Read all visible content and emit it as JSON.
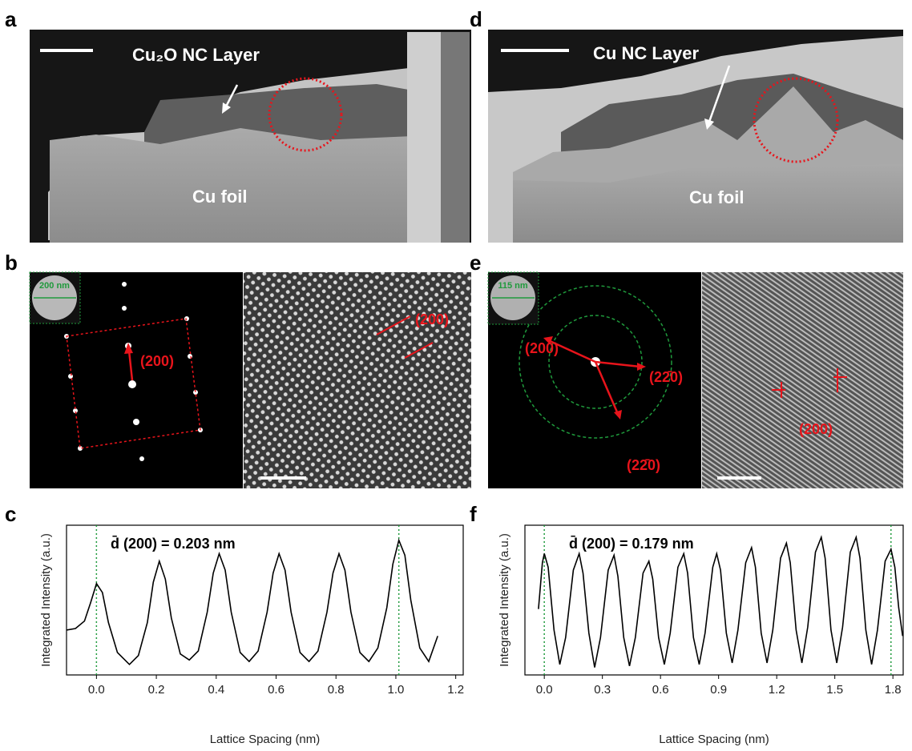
{
  "panels": {
    "a": {
      "label": "a",
      "layer": "Cu₂O NC Layer",
      "foil": "Cu foil"
    },
    "d": {
      "label": "d",
      "layer": "Cu NC Layer",
      "foil": "Cu foil"
    },
    "b": {
      "label": "b",
      "inset": "200 nm",
      "spot": "(200)",
      "fringe": "(200)"
    },
    "e": {
      "label": "e",
      "inset": "115 nm",
      "ring1": "(200)",
      "ring2": "(22̄0)",
      "ring3": "(22̄0)",
      "fringe": "(200)"
    }
  },
  "chart_data": [
    {
      "type": "line",
      "label": "c",
      "annotation": "d̄ (200) = 0.203 nm",
      "x_label": "Lattice Spacing (nm)",
      "y_label": "Integrated Intensity (a.u.)",
      "xlim": [
        -0.1,
        1.225
      ],
      "ylim": [
        0,
        1
      ],
      "xticks": [
        {
          "value": 0,
          "label": "0.0"
        },
        {
          "value": 0.2,
          "label": "0.2"
        },
        {
          "value": 0.4,
          "label": "0.4"
        },
        {
          "value": 0.6,
          "label": "0.6"
        },
        {
          "value": 0.8,
          "label": "0.8"
        },
        {
          "value": 1,
          "label": "1.0"
        },
        {
          "value": 1.2,
          "label": "1.2"
        }
      ],
      "vlines": [
        0,
        1.01
      ],
      "vline_color": "#1f9a3c",
      "color": "#000000",
      "x": [
        -0.1,
        -0.07,
        -0.04,
        -0.02,
        0,
        0.02,
        0.04,
        0.07,
        0.11,
        0.14,
        0.17,
        0.19,
        0.21,
        0.23,
        0.25,
        0.28,
        0.31,
        0.34,
        0.37,
        0.39,
        0.41,
        0.43,
        0.45,
        0.48,
        0.51,
        0.54,
        0.57,
        0.59,
        0.61,
        0.63,
        0.65,
        0.68,
        0.71,
        0.74,
        0.77,
        0.79,
        0.81,
        0.83,
        0.85,
        0.88,
        0.91,
        0.94,
        0.97,
        0.99,
        1.01,
        1.03,
        1.05,
        1.08,
        1.11,
        1.14
      ],
      "values": [
        0.3,
        0.31,
        0.36,
        0.48,
        0.61,
        0.55,
        0.35,
        0.15,
        0.07,
        0.13,
        0.35,
        0.62,
        0.76,
        0.64,
        0.38,
        0.14,
        0.1,
        0.16,
        0.42,
        0.68,
        0.81,
        0.7,
        0.42,
        0.15,
        0.09,
        0.16,
        0.42,
        0.68,
        0.81,
        0.7,
        0.42,
        0.15,
        0.09,
        0.16,
        0.42,
        0.68,
        0.81,
        0.7,
        0.42,
        0.15,
        0.09,
        0.18,
        0.45,
        0.74,
        0.9,
        0.8,
        0.5,
        0.18,
        0.09,
        0.26
      ]
    },
    {
      "type": "line",
      "label": "f",
      "annotation": "d̄ (200) = 0.179 nm",
      "x_label": "Lattice Spacing (nm)",
      "y_label": "Integrated Intensity (a.u.)",
      "xlim": [
        -0.1,
        1.853
      ],
      "ylim": [
        0,
        1
      ],
      "xticks": [
        {
          "value": 0,
          "label": "0.0"
        },
        {
          "value": 0.3,
          "label": "0.3"
        },
        {
          "value": 0.6,
          "label": "0.6"
        },
        {
          "value": 0.9,
          "label": "0.9"
        },
        {
          "value": 1.2,
          "label": "1.2"
        },
        {
          "value": 1.5,
          "label": "1.5"
        },
        {
          "value": 1.8,
          "label": "1.8"
        }
      ],
      "vlines": [
        0,
        1.79
      ],
      "vline_color": "#1f9a3c",
      "color": "#000000",
      "x": [
        -0.03,
        -0.01,
        0,
        0.02,
        0.05,
        0.08,
        0.11,
        0.15,
        0.18,
        0.2,
        0.23,
        0.26,
        0.29,
        0.33,
        0.36,
        0.38,
        0.41,
        0.44,
        0.47,
        0.51,
        0.54,
        0.56,
        0.59,
        0.62,
        0.65,
        0.69,
        0.72,
        0.74,
        0.77,
        0.8,
        0.83,
        0.87,
        0.89,
        0.91,
        0.94,
        0.97,
        1.0,
        1.04,
        1.07,
        1.09,
        1.12,
        1.15,
        1.18,
        1.22,
        1.25,
        1.27,
        1.3,
        1.33,
        1.36,
        1.4,
        1.43,
        1.45,
        1.48,
        1.51,
        1.54,
        1.58,
        1.61,
        1.63,
        1.66,
        1.69,
        1.72,
        1.76,
        1.79,
        1.81,
        1.83,
        1.85
      ],
      "values": [
        0.44,
        0.75,
        0.81,
        0.72,
        0.3,
        0.07,
        0.25,
        0.7,
        0.81,
        0.68,
        0.28,
        0.05,
        0.25,
        0.7,
        0.8,
        0.66,
        0.25,
        0.06,
        0.25,
        0.68,
        0.76,
        0.64,
        0.25,
        0.07,
        0.28,
        0.72,
        0.81,
        0.68,
        0.25,
        0.07,
        0.28,
        0.72,
        0.81,
        0.7,
        0.28,
        0.08,
        0.3,
        0.75,
        0.85,
        0.72,
        0.28,
        0.08,
        0.3,
        0.78,
        0.88,
        0.75,
        0.3,
        0.08,
        0.32,
        0.82,
        0.92,
        0.78,
        0.3,
        0.08,
        0.32,
        0.82,
        0.92,
        0.78,
        0.3,
        0.07,
        0.3,
        0.76,
        0.84,
        0.72,
        0.45,
        0.26
      ]
    }
  ]
}
